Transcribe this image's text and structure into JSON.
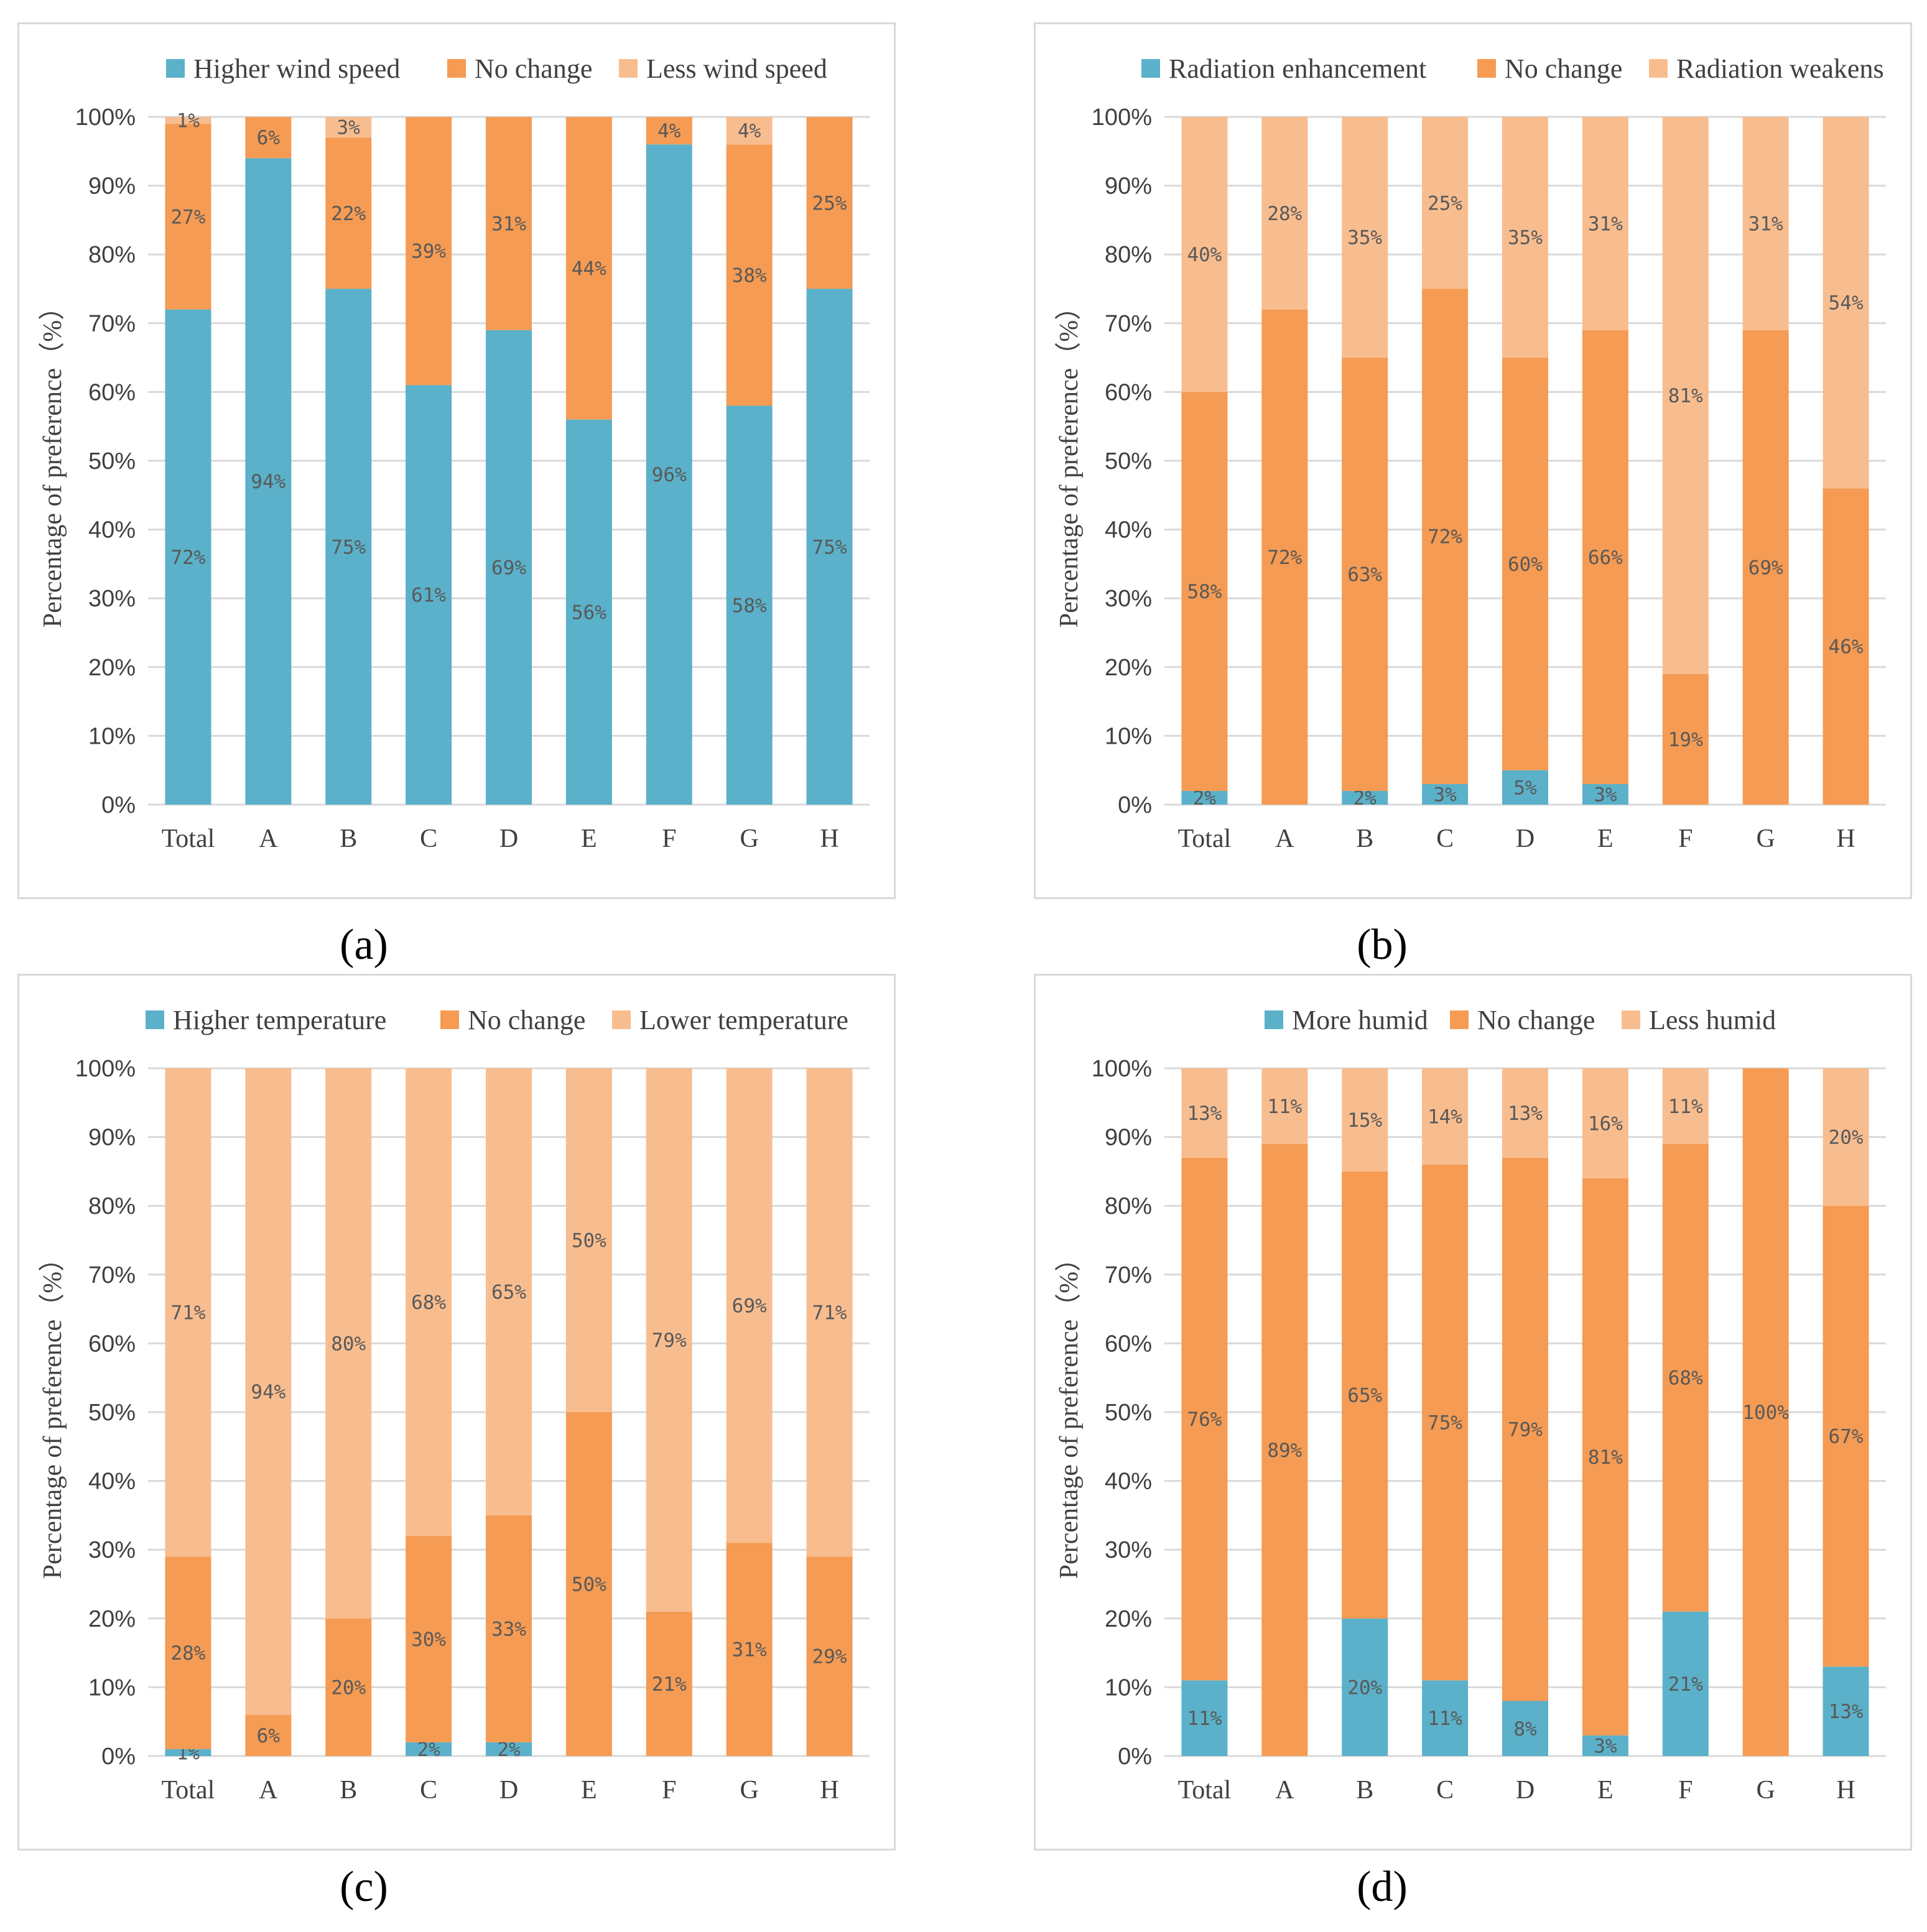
{
  "colors": {
    "blue": "#5ab1c9",
    "orange": "#f59b53",
    "peach": "#f8bd8f"
  },
  "chart_data": [
    {
      "type": "stacked-bar",
      "caption": "(a)",
      "categories": [
        "Total",
        "A",
        "B",
        "C",
        "D",
        "E",
        "F",
        "G",
        "H"
      ],
      "ylabel": "Percentage of preference（%）",
      "yticks": [
        "0%",
        "10%",
        "20%",
        "30%",
        "40%",
        "50%",
        "60%",
        "70%",
        "80%",
        "90%",
        "100%"
      ],
      "ylim": [
        0,
        100
      ],
      "series": [
        {
          "name": "Higher wind speed",
          "color": "blue",
          "values": [
            72,
            94,
            75,
            61,
            69,
            56,
            96,
            58,
            75
          ]
        },
        {
          "name": "No change",
          "color": "orange",
          "values": [
            27,
            6,
            22,
            39,
            31,
            44,
            4,
            38,
            25
          ]
        },
        {
          "name": "Less wind speed",
          "color": "peach",
          "values": [
            1,
            0,
            3,
            0,
            0,
            0,
            0,
            4,
            0
          ]
        }
      ],
      "data_labels": [
        [
          "72%",
          "94%",
          "75%",
          "61%",
          "69%",
          "56%",
          "96%",
          "58%",
          "75%"
        ],
        [
          "27%",
          "6%",
          "22%",
          "39%",
          "31%",
          "44%",
          "4%",
          "38%",
          "25%"
        ],
        [
          "1%",
          "",
          "3%",
          "",
          "",
          "",
          "",
          "4%",
          ""
        ]
      ]
    },
    {
      "type": "stacked-bar",
      "caption": "(b)",
      "categories": [
        "Total",
        "A",
        "B",
        "C",
        "D",
        "E",
        "F",
        "G",
        "H"
      ],
      "ylabel": "Percentage of preference（%）",
      "yticks": [
        "0%",
        "10%",
        "20%",
        "30%",
        "40%",
        "50%",
        "60%",
        "70%",
        "80%",
        "90%",
        "100%"
      ],
      "ylim": [
        0,
        100
      ],
      "series": [
        {
          "name": "Radiation enhancement",
          "color": "blue",
          "values": [
            2,
            0,
            2,
            3,
            5,
            3,
            0,
            0,
            0
          ]
        },
        {
          "name": "No change",
          "color": "orange",
          "values": [
            58,
            72,
            63,
            72,
            60,
            66,
            19,
            69,
            46
          ]
        },
        {
          "name": "Radiation weakens",
          "color": "peach",
          "values": [
            40,
            28,
            35,
            25,
            35,
            31,
            81,
            31,
            54
          ]
        }
      ],
      "data_labels": [
        [
          "2%",
          "",
          "2%",
          "3%",
          "5%",
          "3%",
          "",
          "",
          ""
        ],
        [
          "58%",
          "72%",
          "63%",
          "72%",
          "60%",
          "66%",
          "19%",
          "69%",
          "46%"
        ],
        [
          "40%",
          "28%",
          "35%",
          "25%",
          "35%",
          "31%",
          "81%",
          "31%",
          "54%"
        ]
      ]
    },
    {
      "type": "stacked-bar",
      "caption": "(c)",
      "categories": [
        "Total",
        "A",
        "B",
        "C",
        "D",
        "E",
        "F",
        "G",
        "H"
      ],
      "ylabel": "Percentage of preference（%）",
      "yticks": [
        "0%",
        "10%",
        "20%",
        "30%",
        "40%",
        "50%",
        "60%",
        "70%",
        "80%",
        "90%",
        "100%"
      ],
      "ylim": [
        0,
        100
      ],
      "series": [
        {
          "name": "Higher temperature",
          "color": "blue",
          "values": [
            1,
            0,
            0,
            2,
            2,
            0,
            0,
            0,
            0
          ]
        },
        {
          "name": "No change",
          "color": "orange",
          "values": [
            28,
            6,
            20,
            30,
            33,
            50,
            21,
            31,
            29
          ]
        },
        {
          "name": "Lower temperature",
          "color": "peach",
          "values": [
            71,
            94,
            80,
            68,
            65,
            50,
            79,
            69,
            71
          ]
        }
      ],
      "data_labels": [
        [
          "1%",
          "",
          "",
          "2%",
          "2%",
          "",
          "",
          "",
          ""
        ],
        [
          "28%",
          "6%",
          "20%",
          "30%",
          "33%",
          "50%",
          "21%",
          "31%",
          "29%"
        ],
        [
          "71%",
          "94%",
          "80%",
          "68%",
          "65%",
          "50%",
          "79%",
          "69%",
          "71%"
        ]
      ]
    },
    {
      "type": "stacked-bar",
      "caption": "(d)",
      "categories": [
        "Total",
        "A",
        "B",
        "C",
        "D",
        "E",
        "F",
        "G",
        "H"
      ],
      "ylabel": "Percentage of preference（%）",
      "yticks": [
        "0%",
        "10%",
        "20%",
        "30%",
        "40%",
        "50%",
        "60%",
        "70%",
        "80%",
        "90%",
        "100%"
      ],
      "ylim": [
        0,
        100
      ],
      "series": [
        {
          "name": "More humid",
          "color": "blue",
          "values": [
            11,
            0,
            20,
            11,
            8,
            3,
            21,
            0,
            13
          ]
        },
        {
          "name": "No change",
          "color": "orange",
          "values": [
            76,
            89,
            65,
            75,
            79,
            81,
            68,
            100,
            67
          ]
        },
        {
          "name": "Less humid",
          "color": "peach",
          "values": [
            13,
            11,
            15,
            14,
            13,
            16,
            11,
            0,
            20
          ]
        }
      ],
      "data_labels": [
        [
          "11%",
          "",
          "20%",
          "11%",
          "8%",
          "3%",
          "21%",
          "",
          "13%"
        ],
        [
          "76%",
          "89%",
          "65%",
          "75%",
          "79%",
          "81%",
          "68%",
          "100%",
          "67%"
        ],
        [
          "13%",
          "11%",
          "15%",
          "14%",
          "13%",
          "16%",
          "11%",
          "",
          "20%"
        ]
      ]
    }
  ]
}
